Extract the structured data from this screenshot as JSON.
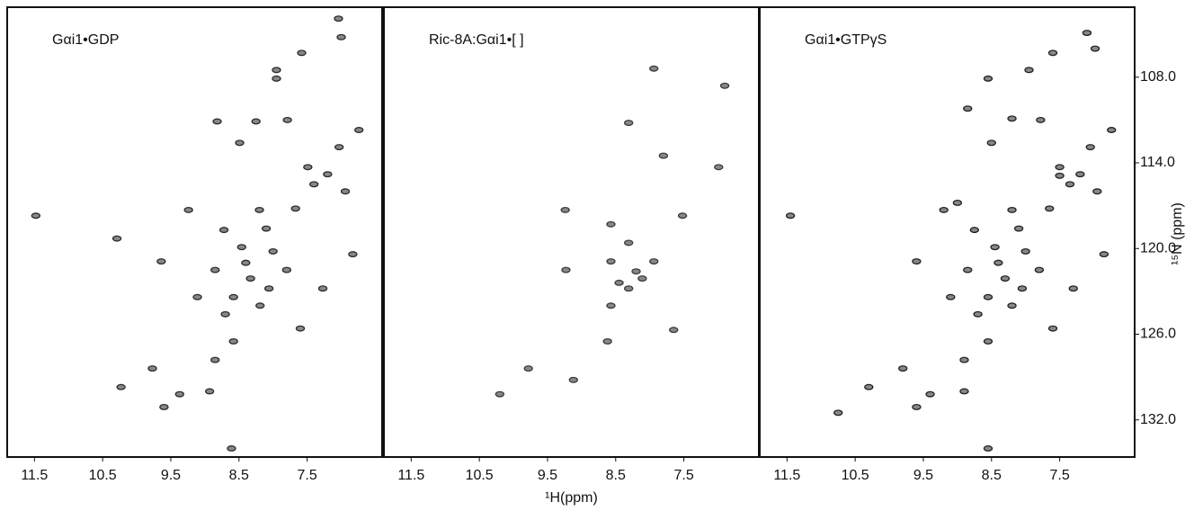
{
  "chart_data": [
    {
      "type": "scatter",
      "title": "Gαi1•GDP",
      "color": "#2b2b2b",
      "xlim": [
        11.9,
        6.4
      ],
      "ylim": [
        103.1,
        134.6
      ],
      "xticks": [
        11.5,
        10.5,
        9.5,
        8.5,
        7.5
      ],
      "x": [
        7.04,
        7.0,
        7.58,
        7.95,
        7.95,
        8.82,
        8.49,
        8.25,
        7.79,
        6.74,
        7.03,
        7.49,
        6.94,
        9.24,
        8.2,
        7.67,
        8.72,
        8.46,
        9.64,
        8.85,
        8.33,
        8.06,
        7.8,
        8.58,
        9.11,
        7.6,
        8.58,
        8.85,
        9.77,
        10.23,
        9.37,
        8.93,
        9.6,
        8.61,
        11.48,
        10.29,
        8.19,
        7.27,
        6.83,
        8.4,
        8.0,
        7.4,
        7.2,
        8.7,
        8.1
      ],
      "y": [
        103.9,
        105.2,
        106.3,
        107.5,
        108.1,
        111.1,
        112.6,
        111.1,
        111.0,
        111.7,
        112.9,
        114.3,
        116.0,
        117.3,
        117.3,
        117.2,
        118.7,
        119.9,
        120.9,
        121.5,
        122.1,
        122.8,
        121.5,
        123.4,
        123.4,
        125.6,
        126.5,
        127.8,
        128.4,
        129.7,
        130.2,
        130.0,
        131.1,
        134.0,
        117.7,
        119.3,
        124.0,
        122.8,
        120.4,
        121.0,
        120.2,
        115.5,
        114.8,
        124.6,
        118.6
      ]
    },
    {
      "type": "scatter",
      "title": "Ric-8A:Gαi1•[ ]",
      "color": "#3a3a3a",
      "xlabel": "¹H(ppm)",
      "xlim": [
        11.9,
        6.4
      ],
      "ylim": [
        103.1,
        134.6
      ],
      "xticks": [
        11.5,
        10.5,
        9.5,
        8.5,
        7.5
      ],
      "x": [
        7.94,
        8.31,
        6.99,
        9.24,
        8.57,
        8.31,
        8.57,
        7.94,
        8.31,
        8.57,
        7.65,
        8.62,
        9.78,
        9.12,
        10.2,
        7.52,
        9.23,
        8.11,
        8.2,
        8.45,
        7.8,
        6.9
      ],
      "y": [
        107.4,
        111.2,
        114.3,
        117.3,
        118.3,
        119.6,
        120.9,
        120.9,
        122.8,
        124.0,
        125.7,
        126.5,
        128.4,
        129.2,
        130.2,
        117.7,
        121.5,
        122.1,
        121.6,
        122.4,
        113.5,
        108.6
      ]
    },
    {
      "type": "scatter",
      "title": "Gαi1•GTPγS",
      "color": "#222222",
      "ylabel": "¹⁵N (ppm)",
      "xlim": [
        11.9,
        6.4
      ],
      "ylim": [
        103.1,
        134.6
      ],
      "xticks": [
        11.5,
        10.5,
        9.5,
        8.5,
        7.5
      ],
      "yticks": [
        {
          "value": 108,
          "label": "108.0"
        },
        {
          "value": 114,
          "label": "114.0"
        },
        {
          "value": 120,
          "label": "120.0"
        },
        {
          "value": 126,
          "label": "126.0"
        },
        {
          "value": 132,
          "label": "132.0"
        }
      ],
      "x": [
        7.1,
        6.98,
        7.6,
        7.95,
        8.55,
        8.2,
        8.85,
        8.5,
        7.78,
        6.74,
        7.05,
        7.5,
        6.95,
        9.2,
        8.2,
        7.65,
        8.75,
        8.45,
        9.6,
        8.85,
        8.3,
        8.05,
        7.8,
        8.55,
        9.1,
        7.6,
        8.55,
        8.9,
        9.8,
        10.3,
        9.4,
        8.9,
        9.6,
        8.55,
        11.45,
        10.75,
        8.2,
        7.3,
        6.85,
        8.4,
        8.0,
        7.35,
        7.2,
        8.7,
        8.1,
        7.5,
        9.0
      ],
      "y": [
        104.9,
        106.0,
        106.3,
        107.5,
        108.1,
        110.9,
        110.2,
        112.6,
        111.0,
        111.7,
        112.9,
        114.3,
        116.0,
        117.3,
        117.3,
        117.2,
        118.7,
        119.9,
        120.9,
        121.5,
        122.1,
        122.8,
        121.5,
        123.4,
        123.4,
        125.6,
        126.5,
        127.8,
        128.4,
        129.7,
        130.2,
        130.0,
        131.1,
        134.0,
        117.7,
        131.5,
        124.0,
        122.8,
        120.4,
        121.0,
        120.2,
        115.5,
        114.8,
        124.6,
        118.6,
        114.9,
        116.8
      ]
    }
  ]
}
